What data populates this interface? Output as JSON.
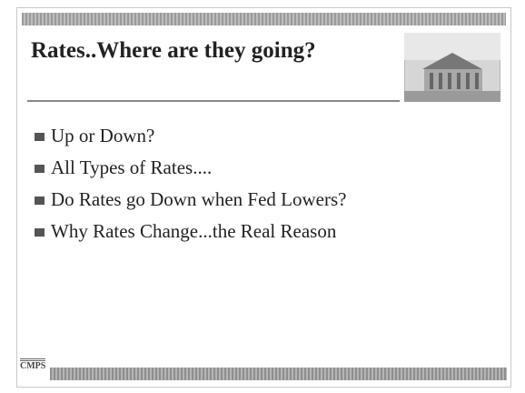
{
  "slide": {
    "title": "Rates..Where are they going?",
    "bullets": [
      "Up or Down?",
      "All Types of Rates....",
      "Do Rates go Down when Fed Lowers?",
      "Why Rates Change...the Real Reason"
    ],
    "logo": "CMPS"
  }
}
